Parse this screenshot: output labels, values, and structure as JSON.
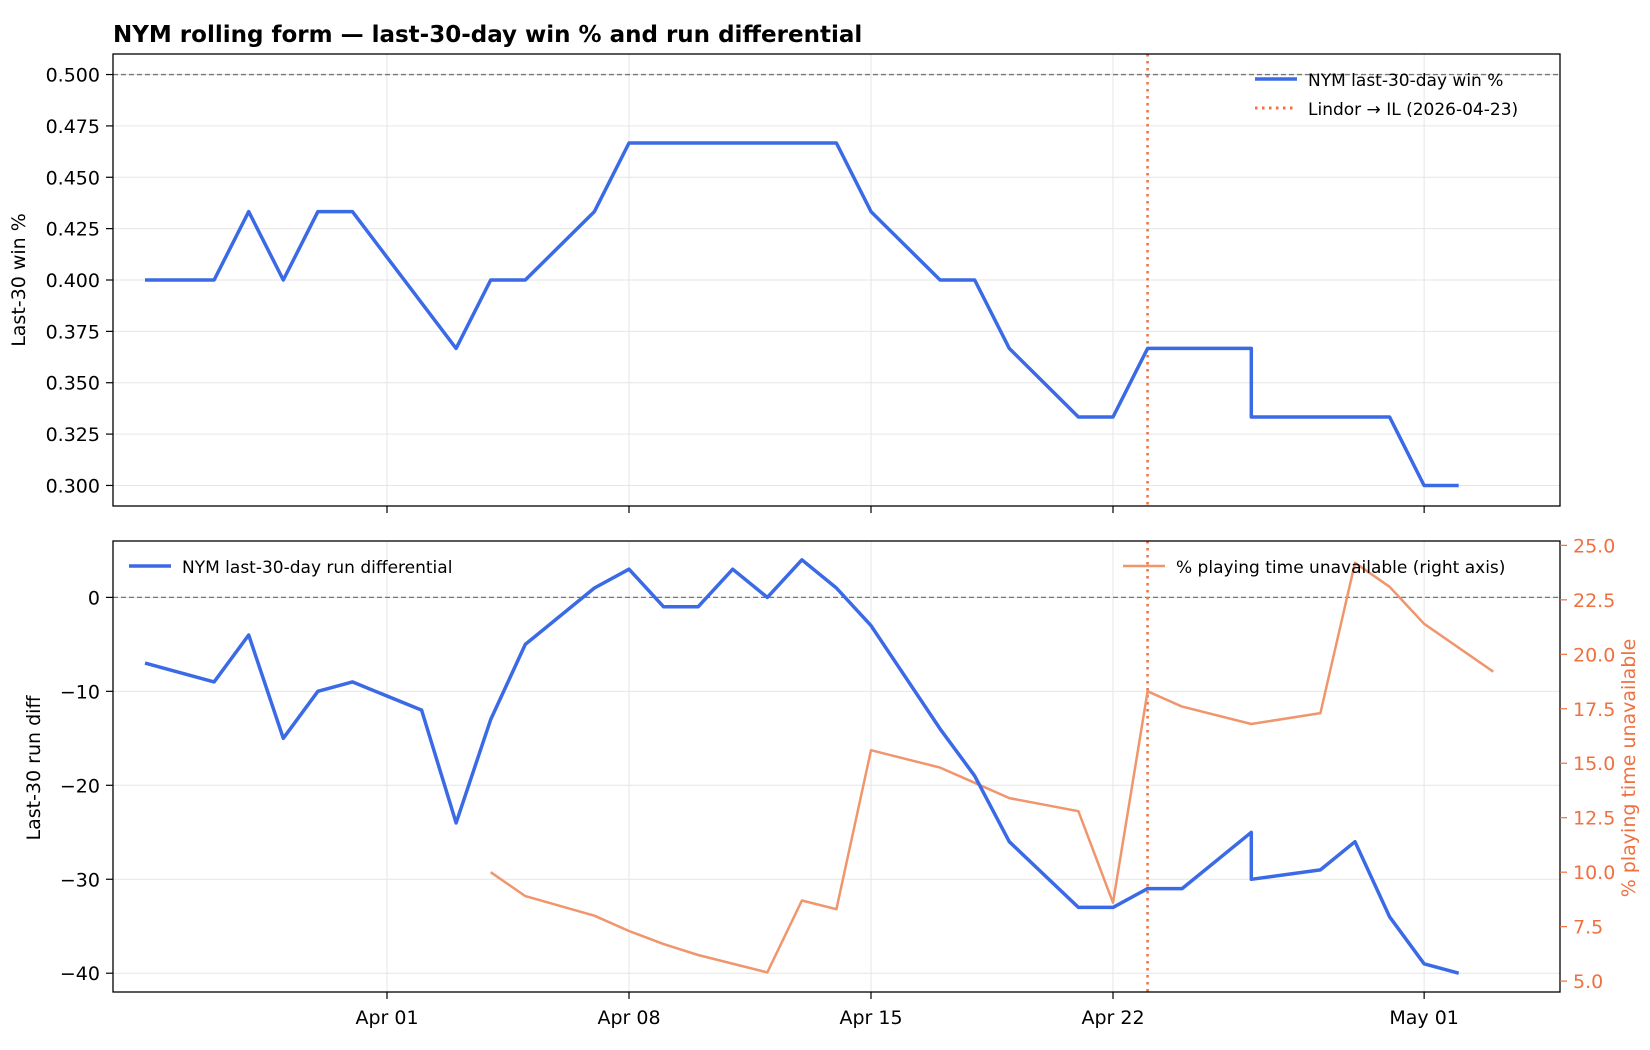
{
  "figure_title": "NYM rolling form — last-30-day win % and run differential",
  "colors": {
    "win_line": "#3b6ae6",
    "run_line": "#3b6ae6",
    "unavail_line": "#f0956c",
    "il_marker": "#f07040",
    "right_axis_text": "#f07040",
    "reference_line": "#777777",
    "grid": "#e6e6e6"
  },
  "chart_data": [
    {
      "type": "line",
      "panel": "top",
      "title": "",
      "ylabel": "Last-30 win %",
      "xlabel": "",
      "ylim": [
        0.29,
        0.51
      ],
      "grid": true,
      "legend_position": "top-right",
      "yticks": [
        "0.500",
        "0.475",
        "0.450",
        "0.425",
        "0.400",
        "0.375",
        "0.350",
        "0.325",
        "0.300"
      ],
      "ytick_values": [
        0.5,
        0.475,
        0.45,
        0.425,
        0.4,
        0.375,
        0.35,
        0.325,
        0.3
      ],
      "reference_y": 0.5,
      "marker": {
        "label": "Lindor → IL (2026-04-23)",
        "date": "2026-04-23"
      },
      "series": [
        {
          "name": "NYM last-30-day win %",
          "points": [
            [
              "2026-03-25",
              0.4
            ],
            [
              "2026-03-27",
              0.4
            ],
            [
              "2026-03-28",
              0.4333
            ],
            [
              "2026-03-29",
              0.4
            ],
            [
              "2026-03-30",
              0.4333
            ],
            [
              "2026-03-31",
              0.4333
            ],
            [
              "2026-04-03",
              0.3667
            ],
            [
              "2026-04-04",
              0.4
            ],
            [
              "2026-04-05",
              0.4
            ],
            [
              "2026-04-07",
              0.4333
            ],
            [
              "2026-04-08",
              0.4667
            ],
            [
              "2026-04-14",
              0.4667
            ],
            [
              "2026-04-15",
              0.4333
            ],
            [
              "2026-04-17",
              0.4
            ],
            [
              "2026-04-18",
              0.4
            ],
            [
              "2026-04-19",
              0.3667
            ],
            [
              "2026-04-21",
              0.3333
            ],
            [
              "2026-04-22",
              0.3333
            ],
            [
              "2026-04-23",
              0.3667
            ],
            [
              "2026-04-26",
              0.3667
            ],
            [
              "2026-04-26",
              0.3333
            ],
            [
              "2026-04-30",
              0.3333
            ],
            [
              "2026-05-01",
              0.3
            ],
            [
              "2026-05-02",
              0.3
            ]
          ]
        }
      ]
    },
    {
      "type": "line",
      "panel": "bottom",
      "title": "",
      "ylabel": "Last-30 run diff",
      "y2label": "% playing time unavailable",
      "xlabel": "",
      "ylim": [
        -42,
        6
      ],
      "y2lim": [
        4.5,
        25.2
      ],
      "grid": true,
      "legend_position": "top-left / top-right",
      "yticks": [
        "0",
        "−10",
        "−20",
        "−30",
        "−40"
      ],
      "ytick_values": [
        0,
        -10,
        -20,
        -30,
        -40
      ],
      "y2ticks": [
        "25.0",
        "22.5",
        "20.0",
        "17.5",
        "15.0",
        "12.5",
        "10.0",
        "7.5",
        "5.0"
      ],
      "y2tick_values": [
        25,
        22.5,
        20,
        17.5,
        15,
        12.5,
        10,
        7.5,
        5
      ],
      "reference_y": 0,
      "marker": {
        "date": "2026-04-23"
      },
      "xticks": [
        "Apr 01",
        "Apr 08",
        "Apr 15",
        "Apr 22",
        "May 01"
      ],
      "xtick_dates": [
        "2026-04-01",
        "2026-04-08",
        "2026-04-15",
        "2026-04-22",
        "2026-05-01"
      ],
      "series": [
        {
          "name": "NYM last-30-day run differential",
          "axis": "left",
          "points": [
            [
              "2026-03-25",
              -7
            ],
            [
              "2026-03-27",
              -9
            ],
            [
              "2026-03-28",
              -4
            ],
            [
              "2026-03-29",
              -15
            ],
            [
              "2026-03-30",
              -10
            ],
            [
              "2026-03-31",
              -9
            ],
            [
              "2026-04-02",
              -12
            ],
            [
              "2026-04-03",
              -24
            ],
            [
              "2026-04-04",
              -13
            ],
            [
              "2026-04-05",
              -5
            ],
            [
              "2026-04-07",
              1
            ],
            [
              "2026-04-08",
              3
            ],
            [
              "2026-04-09",
              -1
            ],
            [
              "2026-04-10",
              -1
            ],
            [
              "2026-04-11",
              3
            ],
            [
              "2026-04-12",
              0
            ],
            [
              "2026-04-13",
              4
            ],
            [
              "2026-04-14",
              1
            ],
            [
              "2026-04-15",
              -3
            ],
            [
              "2026-04-17",
              -14
            ],
            [
              "2026-04-18",
              -19
            ],
            [
              "2026-04-19",
              -26
            ],
            [
              "2026-04-21",
              -33
            ],
            [
              "2026-04-22",
              -33
            ],
            [
              "2026-04-23",
              -31
            ],
            [
              "2026-04-24",
              -31
            ],
            [
              "2026-04-26",
              -25
            ],
            [
              "2026-04-26",
              -30
            ],
            [
              "2026-04-28",
              -29
            ],
            [
              "2026-04-29",
              -26
            ],
            [
              "2026-04-30",
              -34
            ],
            [
              "2026-05-01",
              -39
            ],
            [
              "2026-05-02",
              -40
            ]
          ]
        },
        {
          "name": "% playing time unavailable (right axis)",
          "axis": "right",
          "points": [
            [
              "2026-04-04",
              10.0
            ],
            [
              "2026-04-05",
              8.9
            ],
            [
              "2026-04-07",
              8.0
            ],
            [
              "2026-04-08",
              7.3
            ],
            [
              "2026-04-09",
              6.7
            ],
            [
              "2026-04-10",
              6.2
            ],
            [
              "2026-04-12",
              5.4
            ],
            [
              "2026-04-13",
              8.7
            ],
            [
              "2026-04-14",
              8.3
            ],
            [
              "2026-04-15",
              15.6
            ],
            [
              "2026-04-17",
              14.8
            ],
            [
              "2026-04-18",
              14.1
            ],
            [
              "2026-04-19",
              13.4
            ],
            [
              "2026-04-21",
              12.8
            ],
            [
              "2026-04-22",
              8.6
            ],
            [
              "2026-04-23",
              18.3
            ],
            [
              "2026-04-24",
              17.6
            ],
            [
              "2026-04-26",
              16.8
            ],
            [
              "2026-04-28",
              17.3
            ],
            [
              "2026-04-29",
              24.2
            ],
            [
              "2026-04-30",
              23.1
            ],
            [
              "2026-05-01",
              21.4
            ],
            [
              "2026-05-03",
              19.2
            ]
          ]
        }
      ]
    }
  ]
}
